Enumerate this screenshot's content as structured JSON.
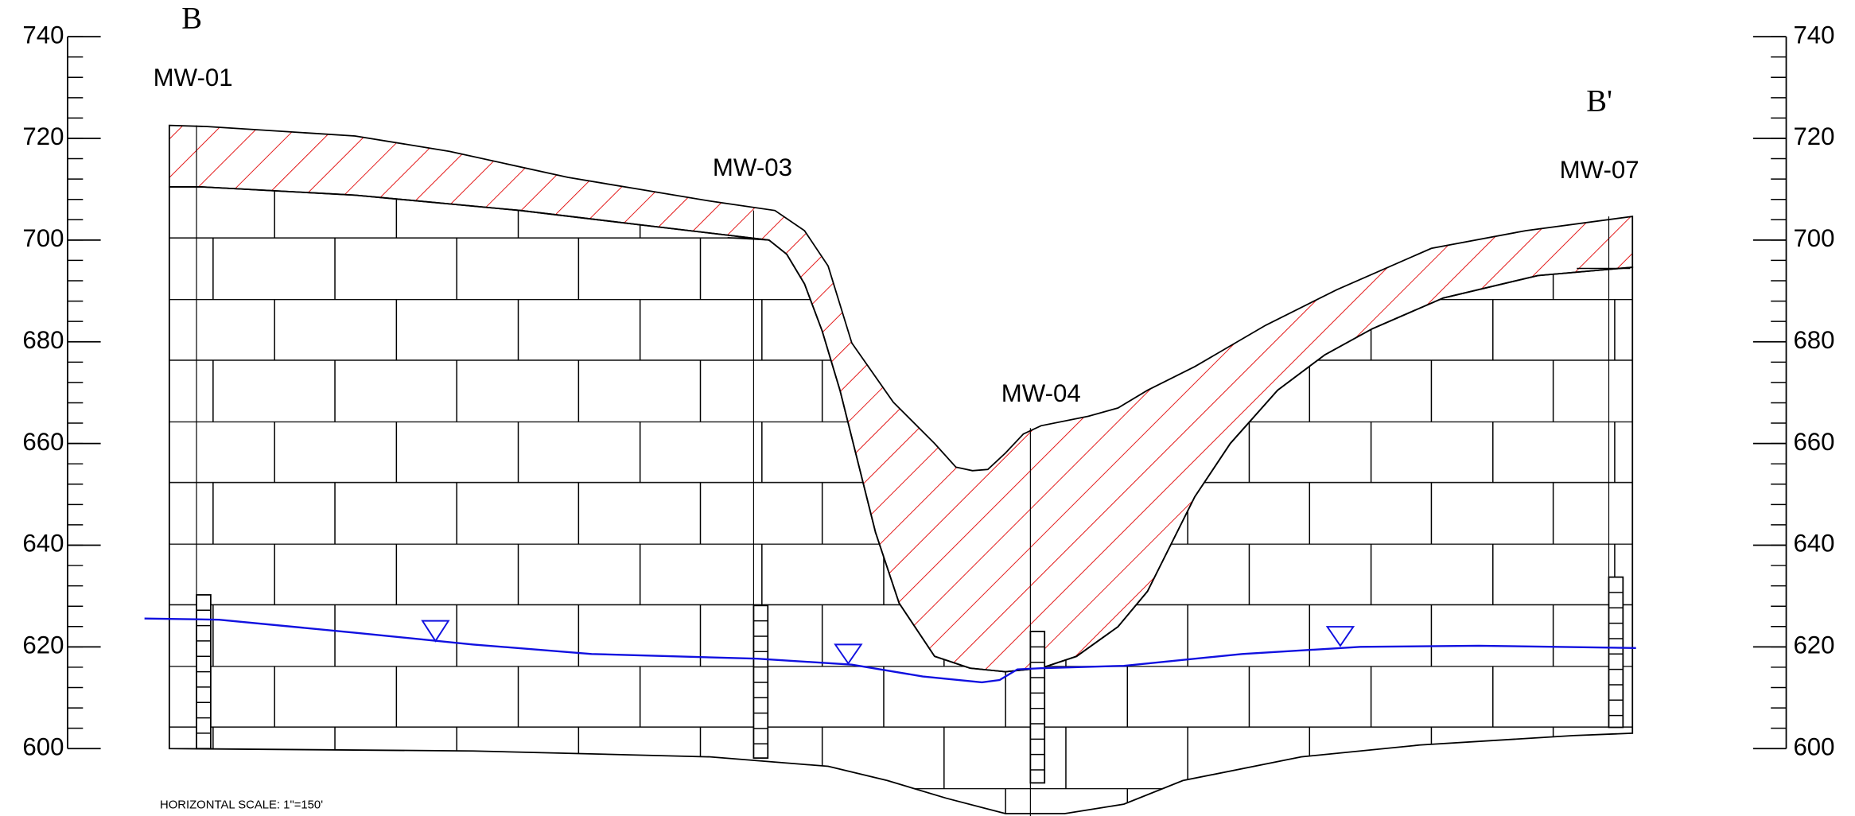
{
  "section": {
    "start_label": "B",
    "end_label": "B'"
  },
  "wells": [
    {
      "label": "MW-01"
    },
    {
      "label": "MW-03"
    },
    {
      "label": "MW-04"
    },
    {
      "label": "MW-07"
    }
  ],
  "elevation_axis": {
    "ylim": [
      600,
      740
    ],
    "ticks": [
      600,
      620,
      640,
      660,
      680,
      700,
      720,
      740
    ]
  },
  "scale_note": "HORIZONTAL SCALE: 1\"=150'"
}
